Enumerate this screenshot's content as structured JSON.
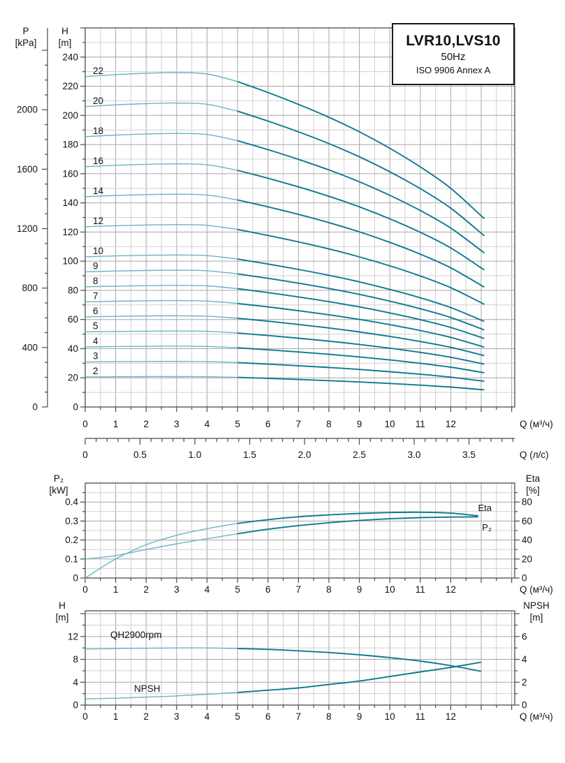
{
  "title_box": {
    "model": "LVR10,LVS10",
    "frequency": "50Hz",
    "standard": "ISO 9906 Annex A"
  },
  "colors": {
    "curve_dark": "#0d7a92",
    "curve_light": "#6ab5c2",
    "grid_minor": "#d0d0d0",
    "grid_major": "#a6a6a6",
    "border": "#4a4a4a",
    "text": "#111111"
  },
  "axis_headers": {
    "pressure": {
      "line1": "P",
      "line2": "[kPa]"
    },
    "head_main": {
      "line1": "H",
      "line2": "[m]"
    },
    "power": {
      "line1": "P₂",
      "line2": "[kW]"
    },
    "eta": {
      "line1": "Eta",
      "line2": "[%]"
    },
    "head_bottom": {
      "line1": "H",
      "line2": "[m]"
    },
    "npsh": {
      "line1": "NPSH",
      "line2": "[m]"
    }
  },
  "chart_data": [
    {
      "id": "main_qh_curves",
      "type": "line",
      "title": "LVR10,LVS10 50Hz ISO 9906 Annex A",
      "x_axis": {
        "label": "Q (м³/ч)",
        "min": 0,
        "max": 14.1,
        "major": 1,
        "minor": 0.5,
        "tick_labels": [
          "0",
          "1",
          "2",
          "3",
          "4",
          "5",
          "6",
          "7",
          "8",
          "9",
          "10",
          "11",
          "12"
        ]
      },
      "x_axis_secondary": {
        "label": "Q (л/с)",
        "min": 0,
        "max": 3.9,
        "major": 0.5,
        "minor": 0.1,
        "m3h_per_lps": 3.6,
        "tick_labels": [
          "0",
          "0.5",
          "1.0",
          "1.5",
          "2.0",
          "2.5",
          "3.0",
          "3.5"
        ]
      },
      "y_axis": {
        "label": "H [m]",
        "min": 0,
        "max": 260,
        "major": 20,
        "minor": 10,
        "tick_labels": [
          "0",
          "20",
          "40",
          "60",
          "80",
          "100",
          "120",
          "140",
          "160",
          "180",
          "200",
          "220",
          "240"
        ]
      },
      "y_axis_secondary": {
        "label": "P [kPa]",
        "min": 0,
        "max": 2400,
        "major": 400,
        "minor": 100,
        "kpa_per_m": 9.81,
        "tick_labels": [
          "0",
          "400",
          "800",
          "1200",
          "1600",
          "2000"
        ]
      },
      "curve_shape": {
        "q": [
          0,
          1,
          2,
          3,
          4,
          5,
          6,
          7,
          8,
          9,
          10,
          11,
          12,
          13.1
        ],
        "fraction": [
          1.0,
          1.006,
          1.01,
          1.012,
          1.008,
          0.985,
          0.952,
          0.916,
          0.877,
          0.833,
          0.783,
          0.727,
          0.662,
          0.57
        ]
      },
      "series": [
        {
          "name": "22",
          "h_start": 226.6,
          "h_end": 129.2
        },
        {
          "name": "20",
          "h_start": 206.0,
          "h_end": 117.4
        },
        {
          "name": "18",
          "h_start": 185.4,
          "h_end": 105.7
        },
        {
          "name": "16",
          "h_start": 164.8,
          "h_end": 93.9
        },
        {
          "name": "14",
          "h_start": 144.2,
          "h_end": 82.2
        },
        {
          "name": "12",
          "h_start": 123.6,
          "h_end": 70.5
        },
        {
          "name": "10",
          "h_start": 103.0,
          "h_end": 58.7
        },
        {
          "name": "9",
          "h_start": 92.7,
          "h_end": 52.8
        },
        {
          "name": "8",
          "h_start": 82.4,
          "h_end": 47.0
        },
        {
          "name": "7",
          "h_start": 72.1,
          "h_end": 41.1
        },
        {
          "name": "6",
          "h_start": 61.8,
          "h_end": 35.2
        },
        {
          "name": "5",
          "h_start": 51.5,
          "h_end": 29.4
        },
        {
          "name": "4",
          "h_start": 41.2,
          "h_end": 23.5
        },
        {
          "name": "3",
          "h_start": 30.9,
          "h_end": 17.6
        },
        {
          "name": "2",
          "h_start": 20.6,
          "h_end": 11.7
        }
      ]
    },
    {
      "id": "power_efficiency",
      "type": "line",
      "x_axis": {
        "label": "Q (м³/ч)",
        "min": 0,
        "max": 14.1,
        "major": 1,
        "minor": 0.5,
        "tick_labels": [
          "0",
          "1",
          "2",
          "3",
          "4",
          "5",
          "6",
          "7",
          "8",
          "9",
          "10",
          "11",
          "12"
        ]
      },
      "y_axis": {
        "label": "P₂ [kW]",
        "min": 0,
        "max": 0.5,
        "major": 0.1,
        "minor": 0.05,
        "tick_labels": [
          "0",
          "0.1",
          "0.2",
          "0.3",
          "0.4"
        ]
      },
      "y_axis_right": {
        "label": "Eta [%]",
        "min": 0,
        "max": 100,
        "major": 20,
        "minor": 10,
        "tick_labels": [
          "0",
          "20",
          "40",
          "60",
          "80"
        ]
      },
      "series": [
        {
          "name": "P₂",
          "axis": "left",
          "q": [
            0,
            1,
            2,
            3,
            4,
            5,
            6,
            7,
            8,
            9,
            10,
            11,
            12,
            12.9
          ],
          "values": [
            0.1,
            0.118,
            0.15,
            0.18,
            0.207,
            0.233,
            0.257,
            0.276,
            0.291,
            0.303,
            0.312,
            0.318,
            0.321,
            0.322
          ]
        },
        {
          "name": "Eta",
          "axis": "right",
          "q": [
            0,
            1,
            2,
            3,
            4,
            5,
            6,
            7,
            8,
            9,
            10,
            11,
            12,
            12.9
          ],
          "values": [
            0,
            20,
            35,
            45,
            52,
            57.5,
            61.5,
            64.5,
            66.5,
            68,
            69,
            69.3,
            68.3,
            65.5
          ]
        }
      ]
    },
    {
      "id": "qh2900_npsh",
      "type": "line",
      "x_axis": {
        "label": "Q (м³/ч)",
        "min": 0,
        "max": 14.1,
        "major": 1,
        "minor": 0.5,
        "tick_labels": [
          "0",
          "1",
          "2",
          "3",
          "4",
          "5",
          "6",
          "7",
          "8",
          "9",
          "10",
          "11",
          "12"
        ]
      },
      "y_axis": {
        "label": "H [m]",
        "min": 0,
        "max": 16.5,
        "major": 4,
        "minor": 2,
        "tick_labels": [
          "0",
          "4",
          "8",
          "12"
        ]
      },
      "y_axis_right": {
        "label": "NPSH [m]",
        "min": 0,
        "max": 8.25,
        "major": 2,
        "minor": 1,
        "tick_labels": [
          "0",
          "2",
          "4",
          "6"
        ]
      },
      "series": [
        {
          "name": "QH2900rpm",
          "axis": "left",
          "q": [
            0,
            1,
            2,
            3,
            4,
            5,
            6,
            7,
            8,
            9,
            10,
            11,
            12,
            13
          ],
          "values": [
            9.8,
            9.9,
            9.95,
            10.0,
            10.0,
            9.9,
            9.75,
            9.5,
            9.2,
            8.8,
            8.3,
            7.7,
            6.9,
            5.9
          ]
        },
        {
          "name": "NPSH",
          "axis": "right",
          "q": [
            0,
            1,
            2,
            3,
            4,
            5,
            6,
            7,
            8,
            9,
            10,
            11,
            12,
            13
          ],
          "values": [
            0.55,
            0.6,
            0.7,
            0.8,
            0.95,
            1.1,
            1.3,
            1.5,
            1.8,
            2.1,
            2.5,
            2.9,
            3.3,
            3.75
          ]
        }
      ]
    }
  ]
}
